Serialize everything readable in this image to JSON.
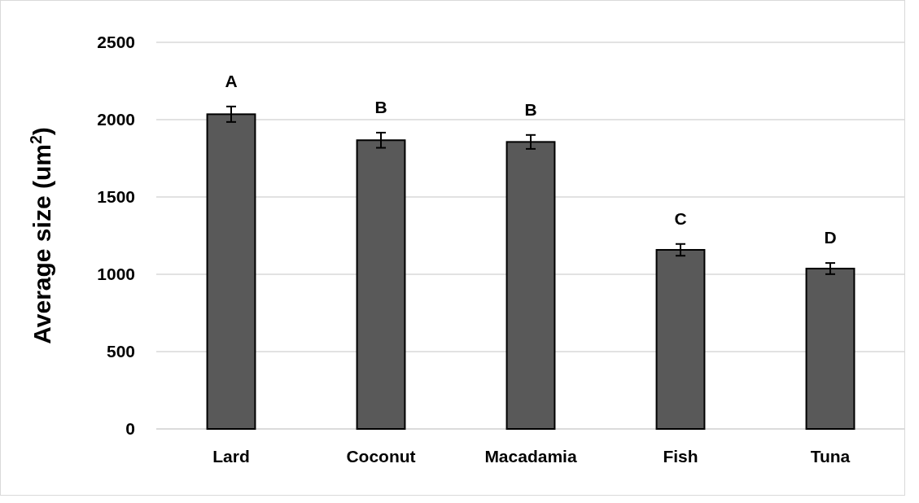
{
  "chart_data": {
    "type": "bar",
    "ylabel": "Average size (um$^{2}$)",
    "categories": [
      "Lard",
      "Coconut",
      "Macadamia",
      "Fish",
      "Tuna"
    ],
    "values": [
      2035,
      1867,
      1856,
      1158,
      1037
    ],
    "errors": [
      50,
      49,
      45,
      38,
      36
    ],
    "color": "#595959",
    "ylim": [
      0,
      2500
    ],
    "yticks": [
      0,
      500,
      1000,
      1500,
      2000,
      2500
    ],
    "grid": "y",
    "annotations": [
      "A",
      "B",
      "B",
      "C",
      "D"
    ]
  }
}
